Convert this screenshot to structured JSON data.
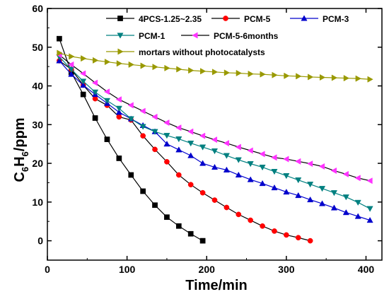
{
  "chart_data": {
    "type": "line",
    "xlabel": "Time/min",
    "ylabel": {
      "main": "C",
      "sub1": "6",
      "mid": "H",
      "sub2": "6",
      "tail": "/ppm"
    },
    "xlim": [
      0,
      420
    ],
    "ylim": [
      -5,
      60
    ],
    "xticks": [
      0,
      100,
      200,
      300,
      400
    ],
    "yticks": [
      0,
      10,
      20,
      30,
      40,
      50,
      60
    ],
    "legend_position": "top-right",
    "series": [
      {
        "name": "4PCS-1.25~2.35",
        "color": "#000000",
        "marker": "square",
        "x": [
          15,
          30,
          45,
          60,
          75,
          90,
          105,
          120,
          135,
          150,
          165,
          180,
          195
        ],
        "y": [
          52.2,
          43.5,
          37.8,
          31.7,
          26.2,
          21.3,
          17.0,
          12.8,
          9.2,
          6.1,
          3.8,
          1.8,
          0.0
        ]
      },
      {
        "name": "PCM-5",
        "color": "#ff0000",
        "marker": "circle",
        "x": [
          15,
          30,
          45,
          60,
          75,
          90,
          105,
          120,
          135,
          150,
          165,
          180,
          195,
          210,
          225,
          240,
          255,
          270,
          285,
          300,
          315,
          330
        ],
        "y": [
          46.5,
          44.3,
          40.2,
          36.7,
          35.0,
          32.0,
          31.2,
          27.1,
          23.6,
          20.4,
          17.0,
          14.5,
          12.4,
          10.5,
          8.6,
          6.8,
          5.3,
          3.8,
          2.5,
          1.5,
          0.8,
          0.0
        ]
      },
      {
        "name": "PCM-3",
        "color": "#0000cc",
        "marker": "triangle-up",
        "x": [
          15,
          30,
          45,
          60,
          75,
          90,
          105,
          120,
          135,
          150,
          165,
          180,
          195,
          210,
          225,
          240,
          255,
          270,
          285,
          300,
          315,
          330,
          345,
          360,
          375,
          390,
          405
        ],
        "y": [
          46.5,
          43.0,
          40.2,
          37.8,
          35.5,
          33.2,
          31.5,
          29.8,
          28.2,
          25.0,
          23.5,
          22.0,
          20.0,
          19.0,
          18.3,
          17.0,
          15.8,
          14.8,
          13.7,
          12.6,
          11.7,
          10.6,
          9.6,
          8.5,
          7.3,
          6.3,
          5.3
        ]
      },
      {
        "name": "PCM-1",
        "color": "#008080",
        "marker": "triangle-down",
        "x": [
          15,
          30,
          45,
          60,
          75,
          90,
          105,
          120,
          135,
          150,
          165,
          180,
          195,
          210,
          225,
          240,
          255,
          270,
          285,
          300,
          315,
          330,
          345,
          360,
          375,
          390,
          405
        ],
        "y": [
          47.5,
          44.3,
          41.2,
          38.4,
          36.2,
          34.2,
          31.5,
          29.5,
          28.2,
          27.2,
          26.3,
          25.2,
          24.2,
          23.2,
          22.0,
          20.9,
          19.9,
          19.0,
          17.9,
          16.8,
          15.7,
          14.6,
          13.5,
          12.4,
          11.3,
          9.9,
          8.3
        ]
      },
      {
        "name": "PCM-5-6months",
        "color": "#ff33ff",
        "marker": "triangle-left",
        "x": [
          15,
          30,
          45,
          60,
          75,
          90,
          105,
          120,
          135,
          150,
          165,
          180,
          195,
          210,
          225,
          240,
          255,
          270,
          285,
          300,
          315,
          330,
          345,
          360,
          375,
          390,
          405
        ],
        "y": [
          48.0,
          45.5,
          43.2,
          40.8,
          38.5,
          36.5,
          35.0,
          33.5,
          32.0,
          30.5,
          29.2,
          28.2,
          27.1,
          26.1,
          25.2,
          24.2,
          23.3,
          22.4,
          21.5,
          21.1,
          20.5,
          19.9,
          19.2,
          18.1,
          17.2,
          16.2,
          15.5
        ]
      },
      {
        "name": "mortars without photocatalysts",
        "color": "#999900",
        "marker": "triangle-right",
        "x": [
          15,
          30,
          45,
          60,
          75,
          90,
          105,
          120,
          135,
          150,
          165,
          180,
          195,
          210,
          225,
          240,
          255,
          270,
          285,
          300,
          315,
          330,
          345,
          360,
          375,
          390,
          405
        ],
        "y": [
          48.5,
          47.6,
          47.1,
          46.6,
          46.2,
          45.8,
          45.5,
          45.2,
          44.9,
          44.6,
          44.3,
          44.0,
          43.8,
          43.6,
          43.4,
          43.3,
          43.1,
          43.0,
          42.8,
          42.6,
          42.5,
          42.3,
          42.2,
          42.1,
          42.0,
          41.9,
          41.7
        ]
      }
    ]
  }
}
